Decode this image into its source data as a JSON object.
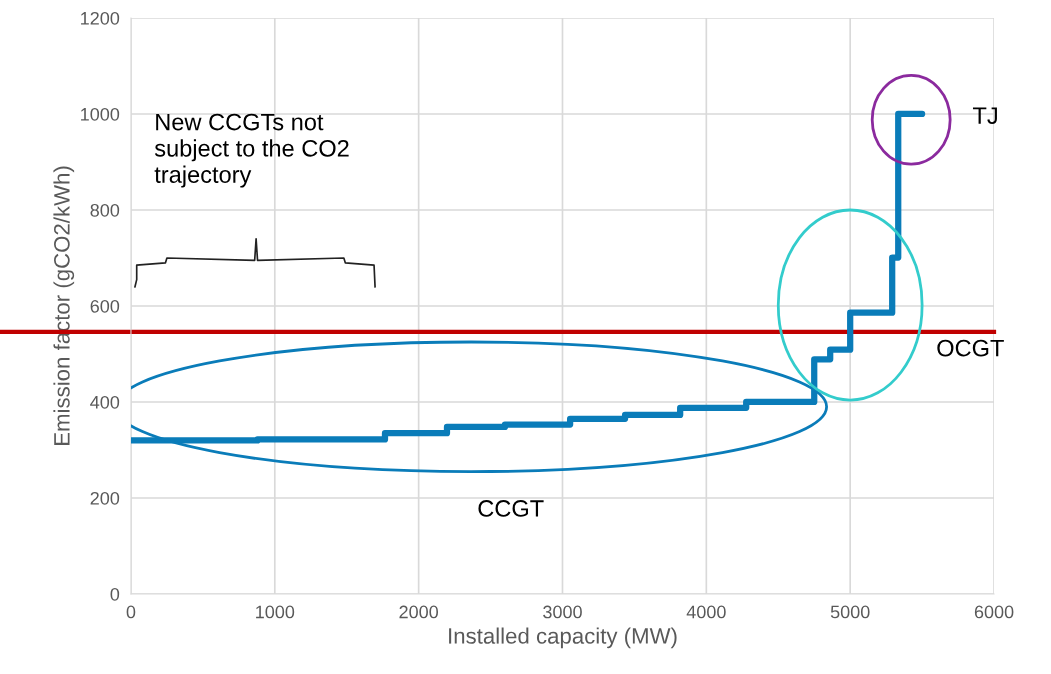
{
  "chart_data": {
    "type": "step",
    "xlabel": "Installed capacity (MW)",
    "ylabel": "Emission factor (gCO2/kWh)",
    "series": [
      {
        "color": "#0a7cb9",
        "x": [
          0,
          880,
          1766,
          2197,
          2600,
          3053,
          3435,
          3818,
          4277,
          4750,
          4861,
          5000,
          5292,
          5334,
          5500
        ],
        "values": [
          320,
          322,
          335,
          348,
          353,
          365,
          373,
          388,
          400,
          489,
          509,
          586,
          701,
          1000,
          1000
        ]
      }
    ],
    "ref_lines": [
      {
        "axis": "y",
        "value": 546,
        "label": "OCGT",
        "color": "#c00000"
      }
    ],
    "annotations": [
      "New CCGTs not\nsubject to the CO2\ntrajectory",
      "CCGT",
      "TJ"
    ],
    "xlim": [
      0,
      6000
    ],
    "ylim": [
      0,
      1200
    ],
    "xticks": [
      0,
      1000,
      2000,
      3000,
      4000,
      5000,
      6000
    ],
    "yticks": [
      0,
      200,
      400,
      600,
      800,
      1000,
      1200
    ],
    "grid": true,
    "line_style": "solid",
    "marker": "none"
  }
}
